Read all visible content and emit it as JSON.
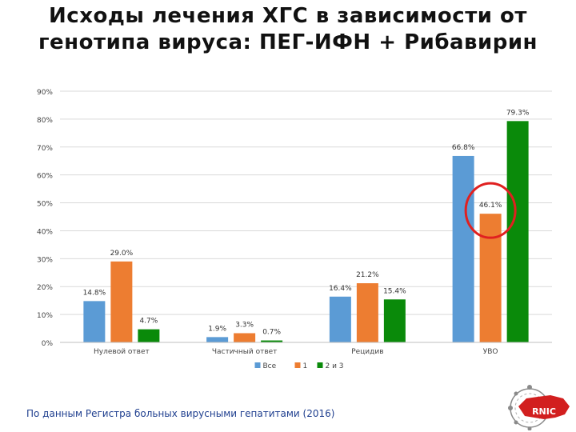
{
  "title": "Исходы лечения ХГС в зависимости от генотипа вируса: ПЕГ-ИФН + Рибавирин",
  "source_note": "По данным Регистра больных вирусными гепатитами (2016)",
  "logo_text": "RNIC",
  "colors": {
    "series1": "#5b9bd5",
    "series2": "#ed7d31",
    "series3": "#0a8a0a",
    "highlight": "#e02020"
  },
  "chart_data": {
    "type": "bar",
    "title": "Исходы лечения ХГС в зависимости от генотипа вируса: ПЕГ-ИФН + Рибавирин",
    "categories": [
      "Нулевой ответ",
      "Частичный ответ",
      "Рецидив",
      "УВО"
    ],
    "series": [
      {
        "name": "Все",
        "values": [
          14.8,
          1.9,
          16.4,
          66.8
        ],
        "labels": [
          "14.8%",
          "1.9%",
          "16.4%",
          "66.8%"
        ]
      },
      {
        "name": "1",
        "values": [
          29.0,
          3.3,
          21.2,
          46.1
        ],
        "labels": [
          "29.0%",
          "3.3%",
          "21.2%",
          "46.1%"
        ]
      },
      {
        "name": "2 и 3",
        "values": [
          4.7,
          0.7,
          15.4,
          79.3
        ],
        "labels": [
          "4.7%",
          "0.7%",
          "15.4%",
          "79.3%"
        ]
      }
    ],
    "ylim": [
      0,
      90
    ],
    "yticks": [
      0,
      10,
      20,
      30,
      40,
      50,
      60,
      70,
      80,
      90
    ],
    "ytick_labels": [
      "0%",
      "10%",
      "20%",
      "30%",
      "40%",
      "50%",
      "60%",
      "70%",
      "80%",
      "90%"
    ],
    "xlabel": "",
    "ylabel": "",
    "grid": true,
    "legend": "bottom",
    "highlight": {
      "category": "УВО",
      "series": "1"
    }
  }
}
